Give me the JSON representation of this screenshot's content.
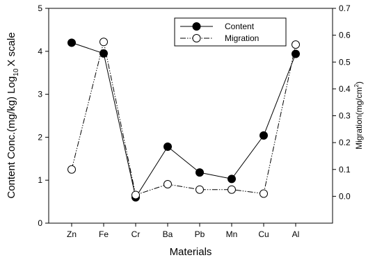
{
  "chart_data": {
    "type": "line",
    "categories": [
      "Zn",
      "Fe",
      "Cr",
      "Ba",
      "Pb",
      "Mn",
      "Cu",
      "Al"
    ],
    "xlabel": "Materials",
    "y_left": {
      "label_main": "Content Conc.(mg/kg) Log",
      "label_sub": "10",
      "label_tail": "X scale",
      "range": [
        0,
        5
      ],
      "ticks": [
        "0",
        "1",
        "2",
        "3",
        "4",
        "5"
      ]
    },
    "y_right": {
      "label_main": "Migration(mg/cm",
      "label_sup": "2",
      "label_tail": ")",
      "range": [
        -0.1,
        0.7
      ],
      "ticks": [
        "0.0",
        "0.1",
        "0.2",
        "0.3",
        "0.4",
        "0.5",
        "0.6",
        "0.7"
      ]
    },
    "series": [
      {
        "name": "Content",
        "axis": "left",
        "marker": "filled-circle",
        "line_style": "solid",
        "values": [
          4.2,
          3.95,
          0.6,
          1.78,
          1.18,
          1.03,
          2.04,
          3.94
        ]
      },
      {
        "name": "Migration",
        "axis": "right",
        "marker": "open-circle",
        "line_style": "dash-dot-dot",
        "values": [
          0.1,
          0.575,
          0.005,
          0.045,
          0.025,
          0.025,
          0.01,
          0.565
        ]
      }
    ],
    "legend_position": "top-right",
    "grid": false
  }
}
